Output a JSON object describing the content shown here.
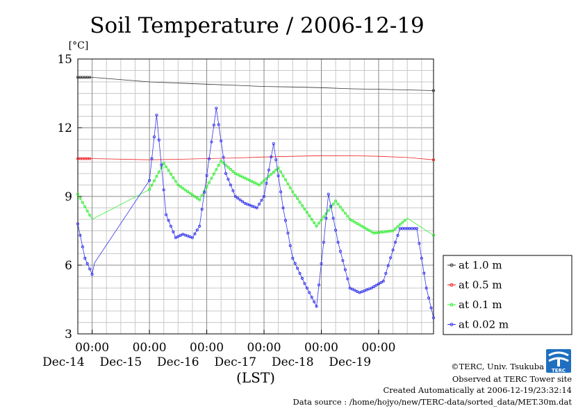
{
  "chart_data": {
    "type": "line",
    "title": "Soil Temperature / 2006-12-19",
    "ylabel": "[°C]",
    "xlabel": "(LST)",
    "ylim": [
      3,
      15
    ],
    "yticks": [
      3,
      6,
      9,
      12,
      15
    ],
    "xlim": [
      "2006-12-13 18:00",
      "2006-12-19 23:00"
    ],
    "xtick_labels": [
      {
        "time": "00:00",
        "date": "Dec-14"
      },
      {
        "time": "00:00",
        "date": "Dec-15"
      },
      {
        "time": "00:00",
        "date": "Dec-16"
      },
      {
        "time": "00:00",
        "date": "Dec-17"
      },
      {
        "time": "00:00",
        "date": "Dec-18"
      },
      {
        "time": "00:00",
        "date": "Dec-19"
      }
    ],
    "grid": true,
    "legend_position": "right",
    "series": [
      {
        "name": "at 1.0 m",
        "color": "#333333",
        "x": [
          "2006-12-13 18:00",
          "2006-12-14 00:00",
          "2006-12-15 00:00",
          "2006-12-15 12:00",
          "2006-12-16 00:00",
          "2006-12-16 12:00",
          "2006-12-17 00:00",
          "2006-12-17 12:00",
          "2006-12-18 00:00",
          "2006-12-18 12:00",
          "2006-12-19 00:00",
          "2006-12-19 12:00",
          "2006-12-19 23:00"
        ],
        "y": [
          14.2,
          14.2,
          14.0,
          13.95,
          13.9,
          13.85,
          13.8,
          13.78,
          13.75,
          13.7,
          13.68,
          13.65,
          13.62
        ]
      },
      {
        "name": "at 0.5 m",
        "color": "#ee2222",
        "x": [
          "2006-12-13 18:00",
          "2006-12-14 00:00",
          "2006-12-15 00:00",
          "2006-12-15 12:00",
          "2006-12-16 00:00",
          "2006-12-16 12:00",
          "2006-12-17 00:00",
          "2006-12-17 12:00",
          "2006-12-18 00:00",
          "2006-12-18 12:00",
          "2006-12-19 00:00",
          "2006-12-19 12:00",
          "2006-12-19 23:00"
        ],
        "y": [
          10.65,
          10.65,
          10.6,
          10.62,
          10.65,
          10.68,
          10.72,
          10.75,
          10.78,
          10.78,
          10.75,
          10.7,
          10.6
        ]
      },
      {
        "name": "at 0.1 m",
        "color": "#33ee33",
        "x": [
          "2006-12-13 18:00",
          "2006-12-14 00:00",
          "2006-12-15 00:00",
          "2006-12-15 06:00",
          "2006-12-15 12:00",
          "2006-12-15 21:00",
          "2006-12-16 06:00",
          "2006-12-16 12:00",
          "2006-12-16 22:00",
          "2006-12-17 06:00",
          "2006-12-17 12:00",
          "2006-12-17 22:00",
          "2006-12-18 06:00",
          "2006-12-18 12:00",
          "2006-12-18 22:00",
          "2006-12-19 06:00",
          "2006-12-19 12:00",
          "2006-12-19 23:00"
        ],
        "y": [
          9.1,
          8.0,
          9.3,
          10.45,
          9.5,
          8.85,
          10.55,
          10.0,
          9.5,
          10.25,
          9.2,
          7.7,
          8.8,
          8.0,
          7.4,
          7.5,
          8.05,
          7.3
        ]
      },
      {
        "name": "at 0.02 m",
        "color": "#3333ee",
        "x": [
          "2006-12-13 18:00",
          "2006-12-13 21:00",
          "2006-12-14 00:00",
          "2006-12-14 01:00",
          "2006-12-15 00:00",
          "2006-12-15 03:00",
          "2006-12-15 07:00",
          "2006-12-15 11:00",
          "2006-12-15 14:00",
          "2006-12-15 18:00",
          "2006-12-15 21:00",
          "2006-12-16 04:00",
          "2006-12-16 08:00",
          "2006-12-16 12:00",
          "2006-12-16 16:00",
          "2006-12-16 21:00",
          "2006-12-17 00:00",
          "2006-12-17 04:00",
          "2006-12-17 08:00",
          "2006-12-17 12:00",
          "2006-12-17 17:00",
          "2006-12-17 22:00",
          "2006-12-18 01:00",
          "2006-12-18 03:00",
          "2006-12-18 07:00",
          "2006-12-18 12:00",
          "2006-12-18 16:00",
          "2006-12-18 21:00",
          "2006-12-19 02:00",
          "2006-12-19 07:00",
          "2006-12-19 09:00",
          "2006-12-19 16:00",
          "2006-12-19 20:00",
          "2006-12-19 23:00"
        ],
        "y": [
          7.8,
          6.3,
          5.6,
          6.1,
          9.7,
          12.55,
          8.2,
          7.2,
          7.35,
          7.2,
          7.7,
          12.85,
          10.0,
          9.0,
          8.7,
          8.5,
          9.0,
          11.3,
          8.5,
          6.3,
          5.2,
          4.2,
          7.0,
          9.1,
          7.0,
          5.0,
          4.8,
          5.0,
          5.3,
          7.0,
          7.6,
          7.6,
          5.0,
          3.7
        ]
      }
    ]
  },
  "credits": {
    "copyright": "©TERC, Univ. Tsukuba",
    "observed": "Observed at TERC Tower site",
    "created": "Created Automatically at 2006-12-19/23:32:14",
    "source": "Data source : /home/hojyo/new/TERC-data/sorted_data/MET.30m.dat",
    "logo_text": "TERC"
  }
}
